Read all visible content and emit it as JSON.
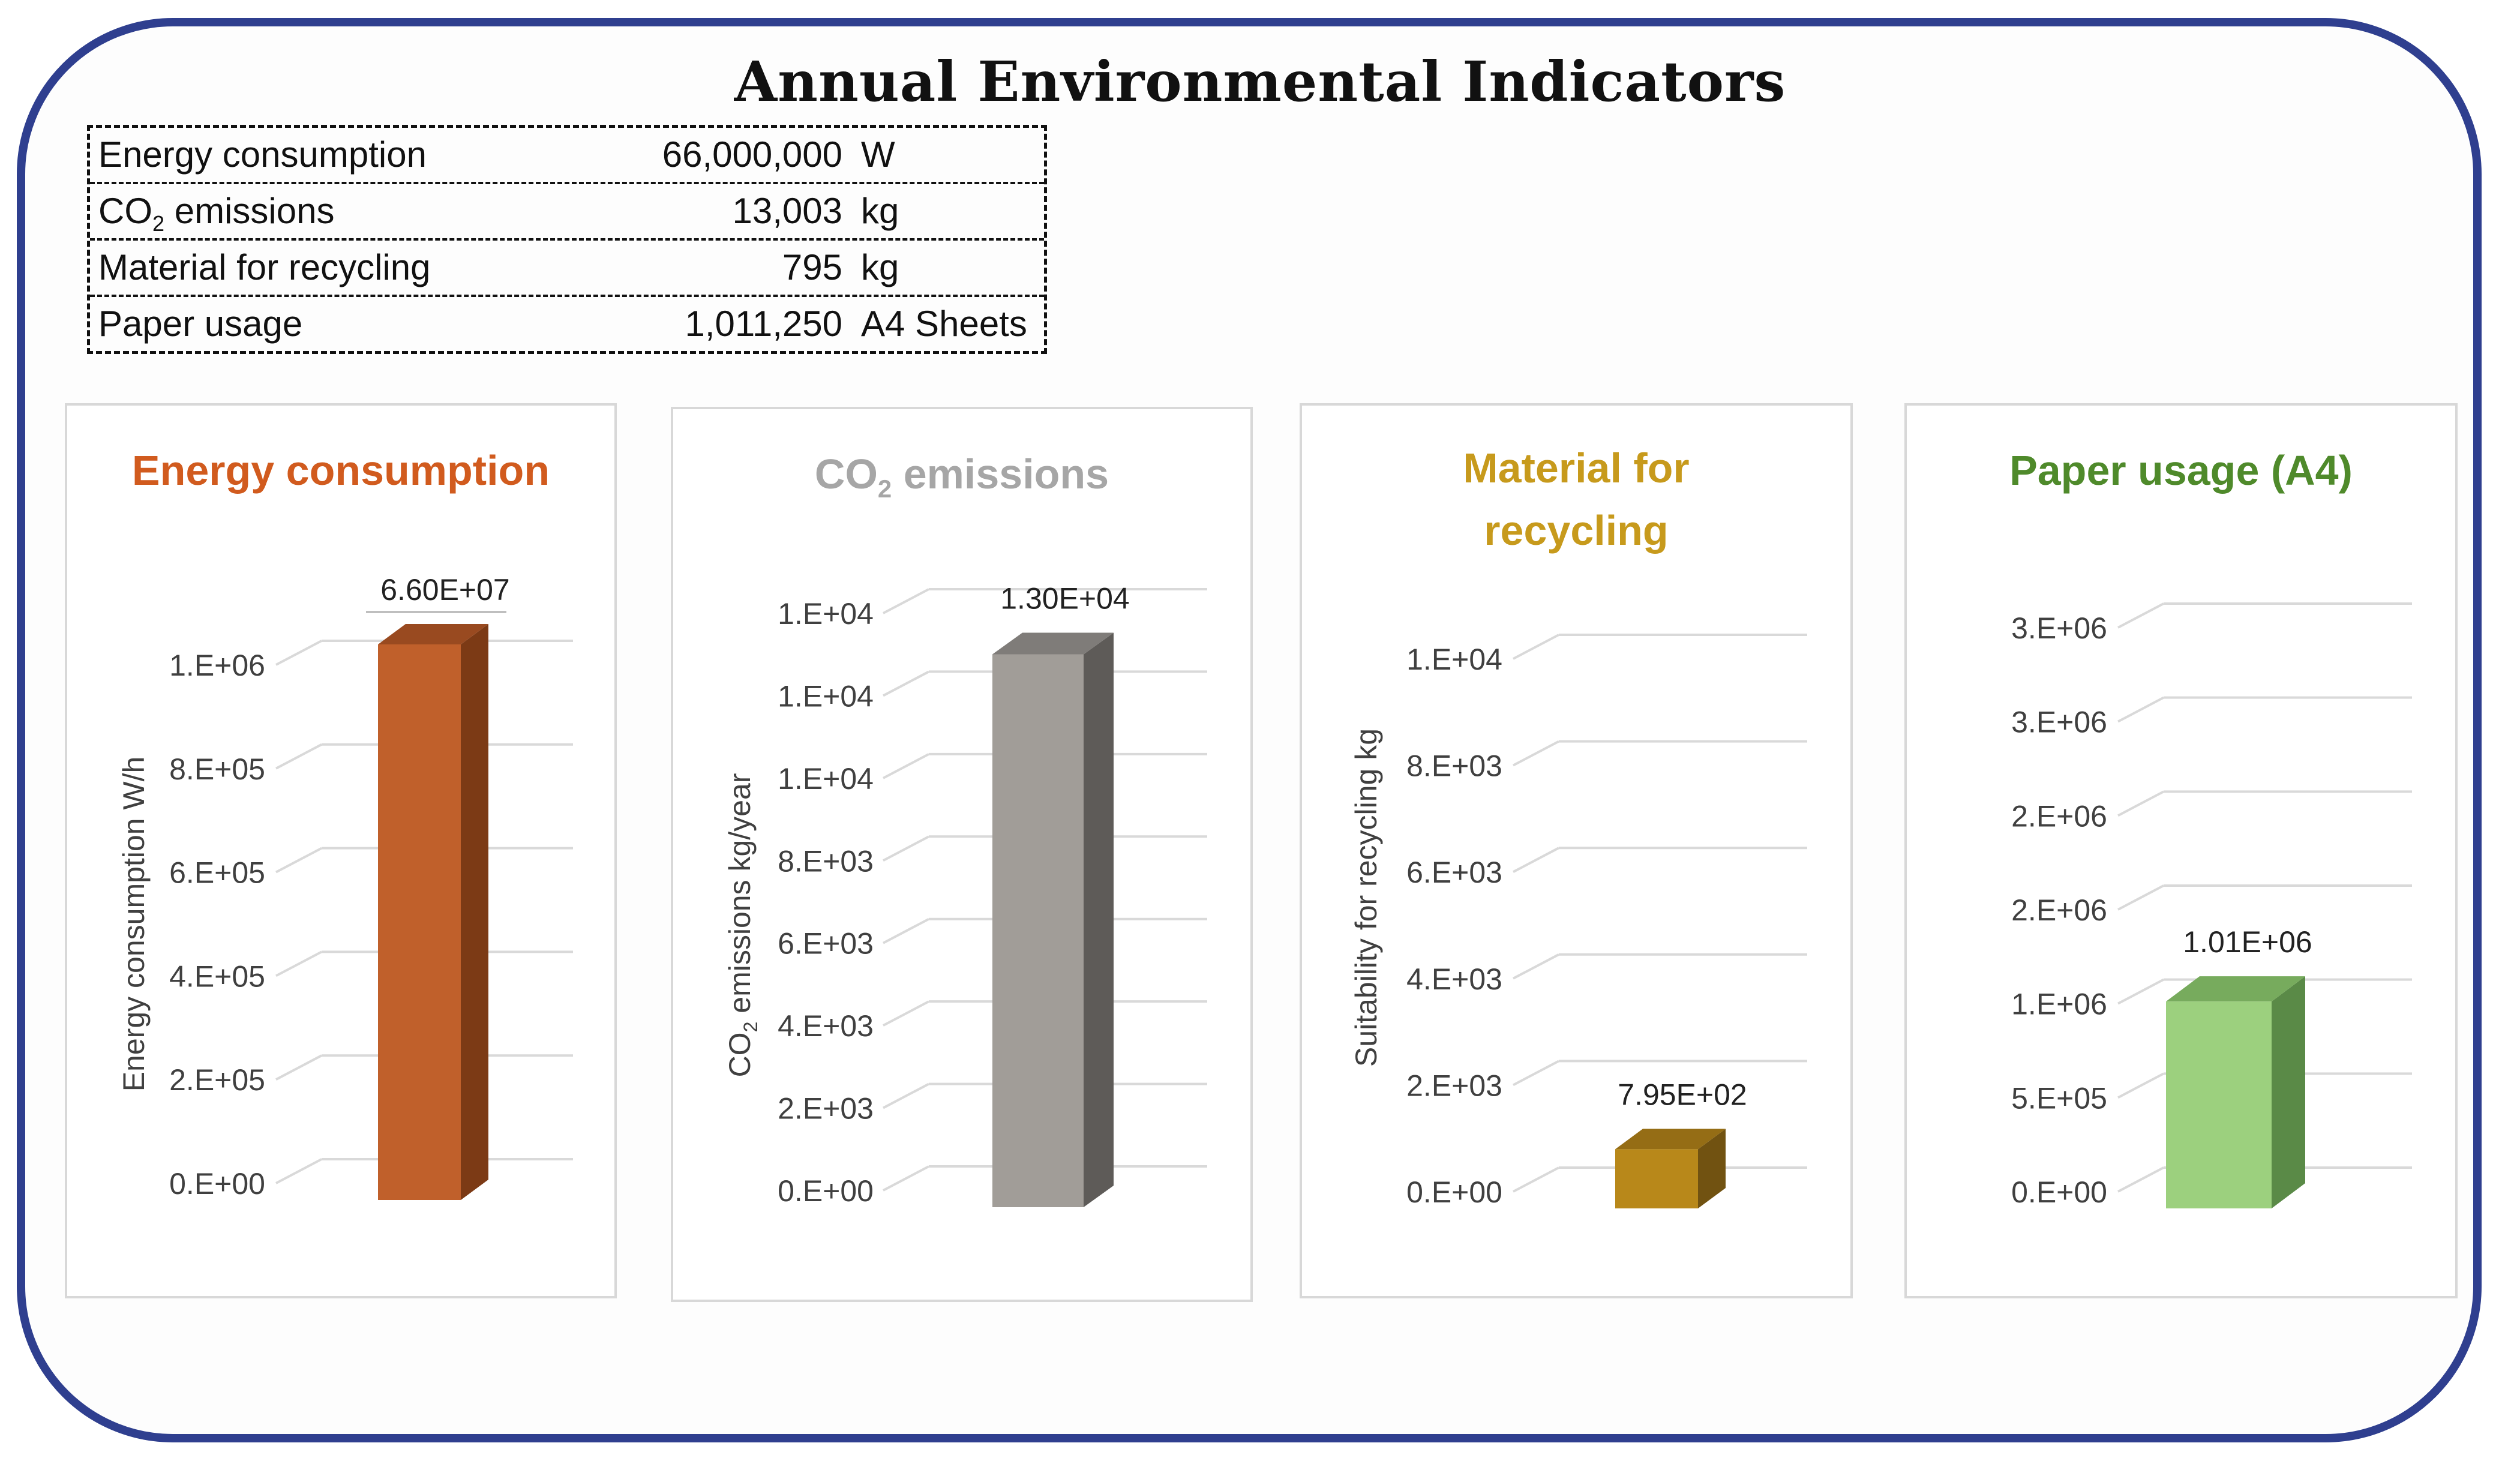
{
  "title": "Annual Environmental Indicators",
  "summary": [
    {
      "label": "Energy consumption",
      "value": "66,000,000",
      "unit": "W"
    },
    {
      "label": "CO",
      "label_sub": "2",
      "label_rest": " emissions",
      "value": "13,003",
      "unit": "kg"
    },
    {
      "label": "Material for recycling",
      "value": "795",
      "unit": "kg"
    },
    {
      "label": "Paper usage",
      "value": "1,011,250",
      "unit": "A4 Sheets"
    }
  ],
  "panels": {
    "energy": {
      "title": "Energy consumption"
    },
    "co2": {
      "title_main": "CO",
      "title_sub": "2",
      "title_rest": " emissions"
    },
    "material": {
      "title_line1": "Material for",
      "title_line2": "recycling"
    },
    "paper": {
      "title": "Paper usage (A4)"
    }
  },
  "colors": {
    "energy_title": "#d15b1e",
    "co2_title": "#a6a6a6",
    "material_title": "#c79a1c",
    "paper_title": "#4f8a2b",
    "energy_front": "#c0602b",
    "energy_side": "#7c3a15",
    "energy_top": "#994a20",
    "co2_front": "#a19d98",
    "co2_side": "#5e5b58",
    "co2_top": "#7f7c79",
    "material_front": "#b8881a",
    "material_side": "#715211",
    "material_top": "#956d15",
    "paper_front": "#9cd07e",
    "paper_side": "#5a8a47",
    "paper_top": "#77ab5d",
    "gridline": "#d9d9d9",
    "axis_text": "#404040"
  },
  "chart_data": [
    {
      "type": "bar",
      "title": "Energy consumption",
      "categories": [
        ""
      ],
      "values": [
        66000000
      ],
      "data_labels": [
        "6.60E+07"
      ],
      "ylabel": "Energy consumption W/h",
      "ylim": [
        0,
        1000000
      ],
      "tick_values": [
        0,
        200000,
        400000,
        600000,
        800000,
        1000000
      ],
      "tick_labels": [
        "0.E+00",
        "2.E+05",
        "4.E+05",
        "6.E+05",
        "8.E+05",
        "1.E+06"
      ],
      "clipped": true
    },
    {
      "type": "bar",
      "title": "CO2 emissions",
      "categories": [
        ""
      ],
      "values": [
        13003
      ],
      "data_labels": [
        "1.30E+04"
      ],
      "ylabel_main": "CO",
      "ylabel_sub": "2",
      "ylabel_rest": " emissions kg/year",
      "ylim": [
        0,
        14000
      ],
      "tick_values": [
        0,
        2000,
        4000,
        6000,
        8000,
        10000,
        12000,
        14000
      ],
      "tick_labels": [
        "0.E+00",
        "2.E+03",
        "4.E+03",
        "6.E+03",
        "8.E+03",
        "1.E+04",
        "1.E+04",
        "1.E+04"
      ]
    },
    {
      "type": "bar",
      "title": "Material for recycling",
      "categories": [
        ""
      ],
      "values": [
        795
      ],
      "data_labels": [
        "7.95E+02"
      ],
      "ylabel": "Suitability for recycling kg",
      "ylim": [
        0,
        10000
      ],
      "tick_values": [
        0,
        2000,
        4000,
        6000,
        8000,
        10000
      ],
      "tick_labels": [
        "0.E+00",
        "2.E+03",
        "4.E+03",
        "6.E+03",
        "8.E+03",
        "1.E+04"
      ]
    },
    {
      "type": "bar",
      "title": "Paper usage (A4)",
      "categories": [
        ""
      ],
      "values": [
        1011250
      ],
      "data_labels": [
        "1.01E+06"
      ],
      "ylabel": "",
      "ylim": [
        0,
        3000000
      ],
      "tick_values": [
        0,
        500000,
        1000000,
        1500000,
        2000000,
        2500000,
        3000000
      ],
      "tick_labels": [
        "0.E+00",
        "5.E+05",
        "1.E+06",
        "2.E+06",
        "2.E+06",
        "3.E+06",
        "3.E+06"
      ]
    }
  ]
}
